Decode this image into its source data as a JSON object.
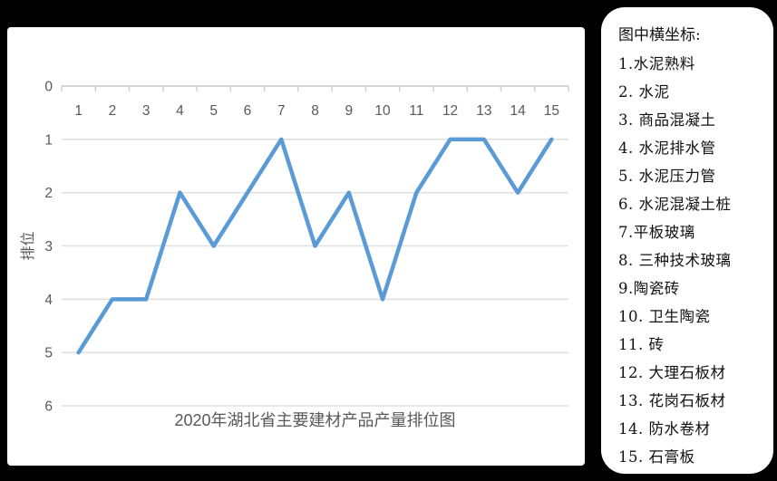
{
  "chart_data": {
    "type": "line",
    "title": "2020年湖北省主要建材产品产量排位图",
    "xlabel": "",
    "ylabel": "排位",
    "x": [
      1,
      2,
      3,
      4,
      5,
      6,
      7,
      8,
      9,
      10,
      11,
      12,
      13,
      14,
      15
    ],
    "values": [
      5,
      4,
      4,
      2,
      3,
      2,
      1,
      3,
      2,
      4,
      2,
      1,
      1,
      2,
      1
    ],
    "yticks": [
      0,
      1,
      2,
      3,
      4,
      5,
      6
    ],
    "ylim": [
      0,
      6
    ],
    "y_axis_reversed": true,
    "grid": true,
    "legend_position": "none",
    "line_color": "#5B9BD5",
    "grid_color": "#e0e0e0",
    "axis_color": "#cfcfcf",
    "text_color": "#595959"
  },
  "legend": {
    "title": "图中横坐标:",
    "items": [
      "1.水泥熟料",
      "2. 水泥",
      "3. 商品混凝土",
      "4. 水泥排水管",
      "5. 水泥压力管",
      "6. 水泥混凝土桩",
      "7.平板玻璃",
      "8. 三种技术玻璃",
      "9.陶瓷砖",
      "10. 卫生陶瓷",
      "11. 砖",
      "12. 大理石板材",
      "13. 花岗石板材",
      "14. 防水卷材",
      "15. 石膏板"
    ]
  }
}
